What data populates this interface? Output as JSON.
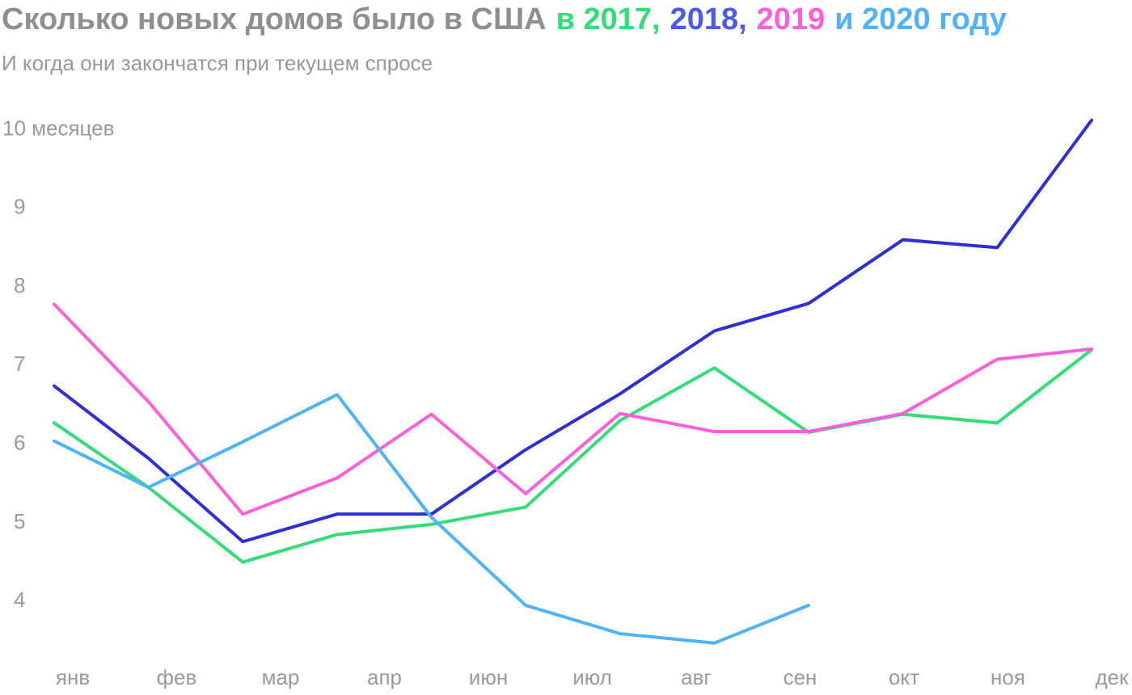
{
  "chart_data": {
    "type": "line",
    "title": [
      {
        "text": "Сколько новых домов было в США",
        "color": "#8f8f8f"
      },
      {
        "text": "в 2017,",
        "color": "#33dd77"
      },
      {
        "text": "2018,",
        "color": "#4a5ce8"
      },
      {
        "text": "2019",
        "color": "#ff5fd8"
      },
      {
        "text": "и 2020 году",
        "color": "#4fb3f7"
      }
    ],
    "subtitle": "И когда они закончатся при текущем спросе",
    "categories": [
      "янв",
      "фев",
      "мар",
      "апр",
      null,
      "июн",
      "июл",
      "авг",
      "сен",
      "окт",
      "ноя",
      "дек"
    ],
    "series": [
      {
        "name": "2017",
        "color": "#33dd77",
        "values": [
          6.27,
          5.45,
          4.5,
          4.85,
          4.98,
          5.2,
          6.3,
          6.97,
          6.15,
          6.38,
          6.27,
          7.2
        ]
      },
      {
        "name": "2018",
        "color": "#2f2fd6",
        "values": [
          6.74,
          5.82,
          4.76,
          5.11,
          5.11,
          5.93,
          6.64,
          7.44,
          7.79,
          8.6,
          8.5,
          10.12
        ]
      },
      {
        "name": "2019",
        "color": "#ff5fd8",
        "values": [
          7.78,
          6.54,
          5.11,
          5.57,
          6.38,
          5.37,
          6.39,
          6.16,
          6.16,
          6.39,
          7.08,
          7.21
        ]
      },
      {
        "name": "2020",
        "color": "#4fb3f7",
        "values": [
          6.04,
          5.45,
          6.03,
          6.63,
          5.07,
          3.95,
          3.59,
          3.47,
          3.95,
          null,
          null,
          null
        ]
      }
    ],
    "ylim": [
      3.2,
      10.2
    ],
    "yticks": [
      4,
      5,
      6,
      7,
      8,
      9,
      {
        "value": 10,
        "label": "10 месяцев"
      }
    ],
    "grid": false
  }
}
